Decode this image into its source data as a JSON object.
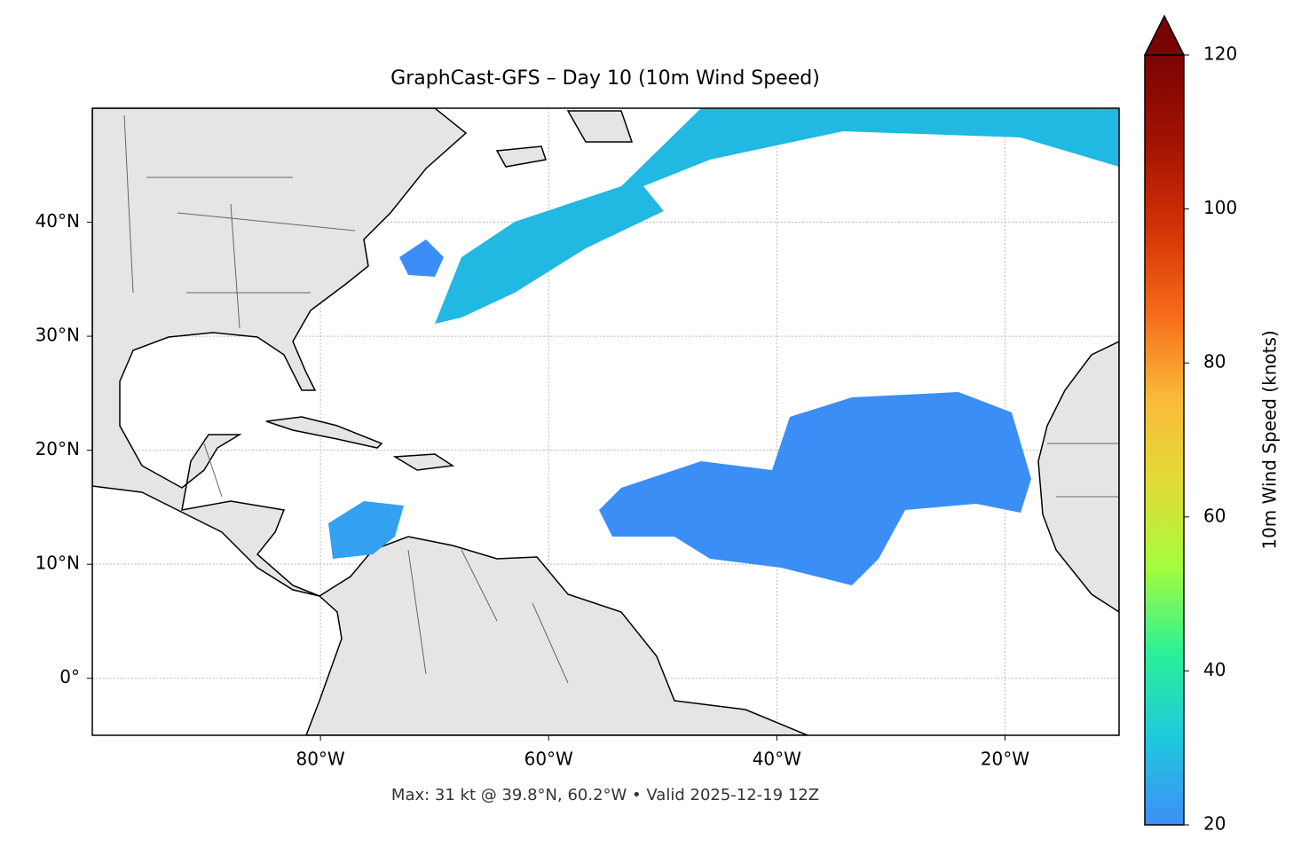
{
  "chart_data": {
    "type": "map",
    "title": "GraphCast-GFS – Day 10 (10m Wind Speed)",
    "note": "Max: 31 kt @ 39.8°N, 60.2°W • Valid 2025-12-19 12Z",
    "xlim": [
      -100,
      -10
    ],
    "ylim": [
      -5,
      50
    ],
    "xticks": [
      {
        "value": -80,
        "label": "80°W"
      },
      {
        "value": -60,
        "label": "60°W"
      },
      {
        "value": -40,
        "label": "40°W"
      },
      {
        "value": -20,
        "label": "20°W"
      }
    ],
    "yticks": [
      {
        "value": 0,
        "label": "0°"
      },
      {
        "value": 10,
        "label": "10°N"
      },
      {
        "value": 20,
        "label": "20°N"
      },
      {
        "value": 30,
        "label": "30°N"
      },
      {
        "value": 40,
        "label": "40°N"
      }
    ],
    "grid": true,
    "colorbar": {
      "label": "10m Wind Speed (knots)",
      "lim": [
        20,
        120
      ],
      "ticks": [
        20,
        40,
        60,
        80,
        100,
        120
      ],
      "extend": "max",
      "colors": [
        "#3e8ef7",
        "#1fc8de",
        "#2af09a",
        "#a4fc3c",
        "#e2dc38",
        "#fbb938",
        "#f56918",
        "#d23105",
        "#a11201",
        "#7a0403"
      ]
    }
  }
}
